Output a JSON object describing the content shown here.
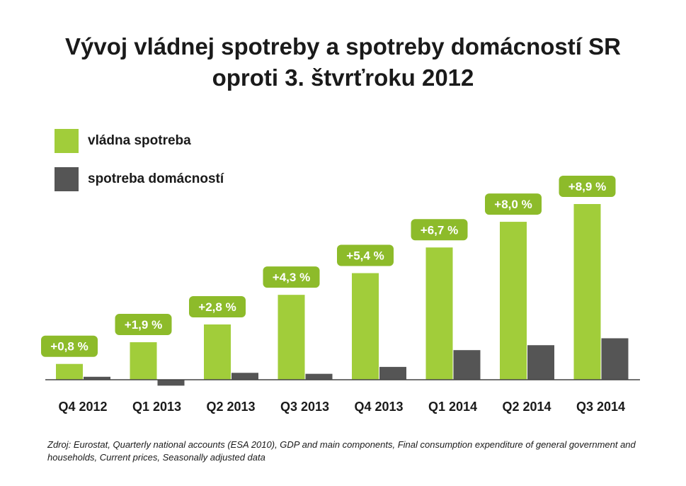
{
  "colors": {
    "government": "#a1cd3a",
    "households": "#555555",
    "label_bg": "#8dbb2a",
    "label_text": "#ffffff",
    "axis": "#444444"
  },
  "legend": [
    {
      "label": "vládna spotreba",
      "color": "#a1cd3a"
    },
    {
      "label": "spotreba domácností",
      "color": "#555555"
    }
  ],
  "source_text": "Zdroj: Eurostat, Quarterly national accounts (ESA 2010), GDP and main components, Final consumption expenditure of general government and households, Current prices, Seasonally adjusted data",
  "chart_data": {
    "type": "bar",
    "title": "Vývoj vládnej spotreby a spotreby domácností SR oproti 3. štvrťroku 2012",
    "title_lines": [
      "Vývoj vládnej spotreby a spotreby domácností SR",
      "oproti 3. štvrťroku 2012"
    ],
    "categories": [
      "Q4 2012",
      "Q1 2013",
      "Q2 2013",
      "Q3 2013",
      "Q4 2013",
      "Q1 2014",
      "Q2 2014",
      "Q3 2014"
    ],
    "series": [
      {
        "name": "vládna spotreba",
        "values": [
          0.8,
          1.9,
          2.8,
          4.3,
          5.4,
          6.7,
          8.0,
          8.9
        ],
        "labels": [
          "+0,8 %",
          "+1,9 %",
          "+2,8 %",
          "+4,3 %",
          "+5,4 %",
          "+6,7 %",
          "+8,0 %",
          "+8,9 %"
        ]
      },
      {
        "name": "spotreba domácností",
        "values": [
          0.15,
          -0.3,
          0.35,
          0.3,
          0.65,
          1.5,
          1.75,
          2.1
        ]
      }
    ],
    "xlabel": "",
    "ylabel": "",
    "ylim": [
      -0.3,
      8.9
    ],
    "grid": false,
    "legend_position": "top-left"
  }
}
